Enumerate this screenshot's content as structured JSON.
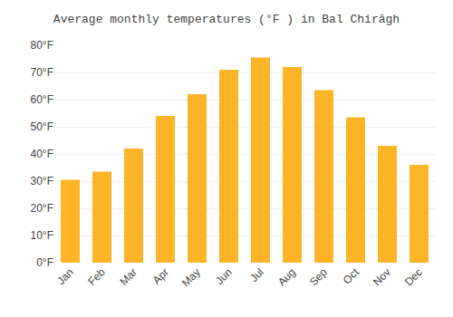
{
  "chart_data": {
    "type": "bar",
    "title": "Average monthly temperatures (°F ) in Bal Chirāgh",
    "categories": [
      "Jan",
      "Feb",
      "Mar",
      "Apr",
      "May",
      "Jun",
      "Jul",
      "Aug",
      "Sep",
      "Oct",
      "Nov",
      "Dec"
    ],
    "values": [
      30.5,
      33.5,
      42.0,
      54.0,
      62.0,
      71.0,
      75.5,
      72.0,
      63.5,
      53.5,
      43.0,
      36.0
    ],
    "color": "#FDB527",
    "ylim": [
      0,
      80
    ],
    "yticks": [
      {
        "value": 0,
        "label": "0°F"
      },
      {
        "value": 10,
        "label": "10°F"
      },
      {
        "value": 20,
        "label": "20°F"
      },
      {
        "value": 30,
        "label": "30°F"
      },
      {
        "value": 40,
        "label": "40°F"
      },
      {
        "value": 50,
        "label": "50°F"
      },
      {
        "value": 60,
        "label": "60°F"
      },
      {
        "value": 70,
        "label": "70°F"
      },
      {
        "value": 80,
        "label": "80°F"
      }
    ],
    "grid": true
  }
}
